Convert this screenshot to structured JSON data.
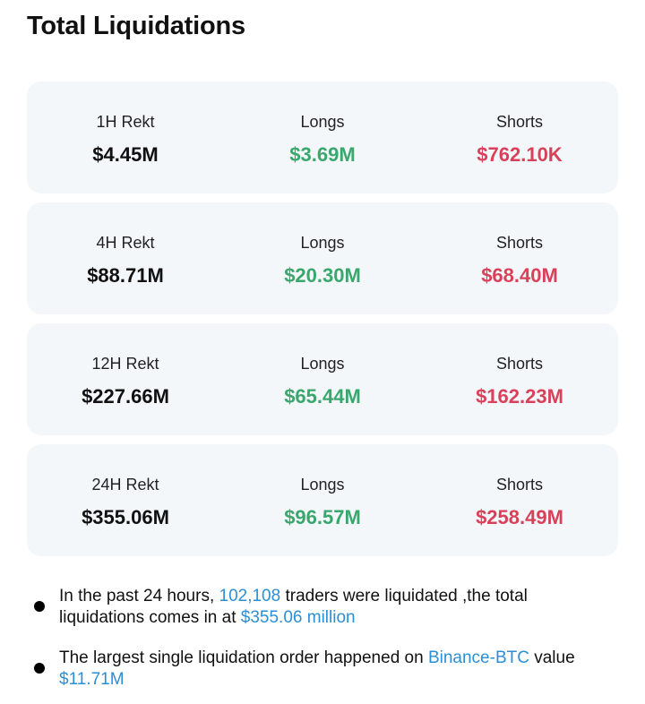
{
  "header": {
    "title": "Total Liquidations"
  },
  "cards": [
    {
      "period": "1H Rekt",
      "total": "$4.45M",
      "longs_label": "Longs",
      "longs": "$3.69M",
      "shorts_label": "Shorts",
      "shorts": "$762.10K"
    },
    {
      "period": "4H Rekt",
      "total": "$88.71M",
      "longs_label": "Longs",
      "longs": "$20.30M",
      "shorts_label": "Shorts",
      "shorts": "$68.40M"
    },
    {
      "period": "12H Rekt",
      "total": "$227.66M",
      "longs_label": "Longs",
      "longs": "$65.44M",
      "shorts_label": "Shorts",
      "shorts": "$162.23M"
    },
    {
      "period": "24H Rekt",
      "total": "$355.06M",
      "longs_label": "Longs",
      "longs": "$96.57M",
      "shorts_label": "Shorts",
      "shorts": "$258.49M"
    }
  ],
  "notes": [
    [
      "In the past 24 hours, ",
      "102,108",
      " traders were liquidated ,the total liquidations comes in at ",
      "$355.06 million"
    ],
    [
      "The largest single liquidation order happened on ",
      "Binance-BTC",
      " value ",
      "$11.71M"
    ]
  ]
}
